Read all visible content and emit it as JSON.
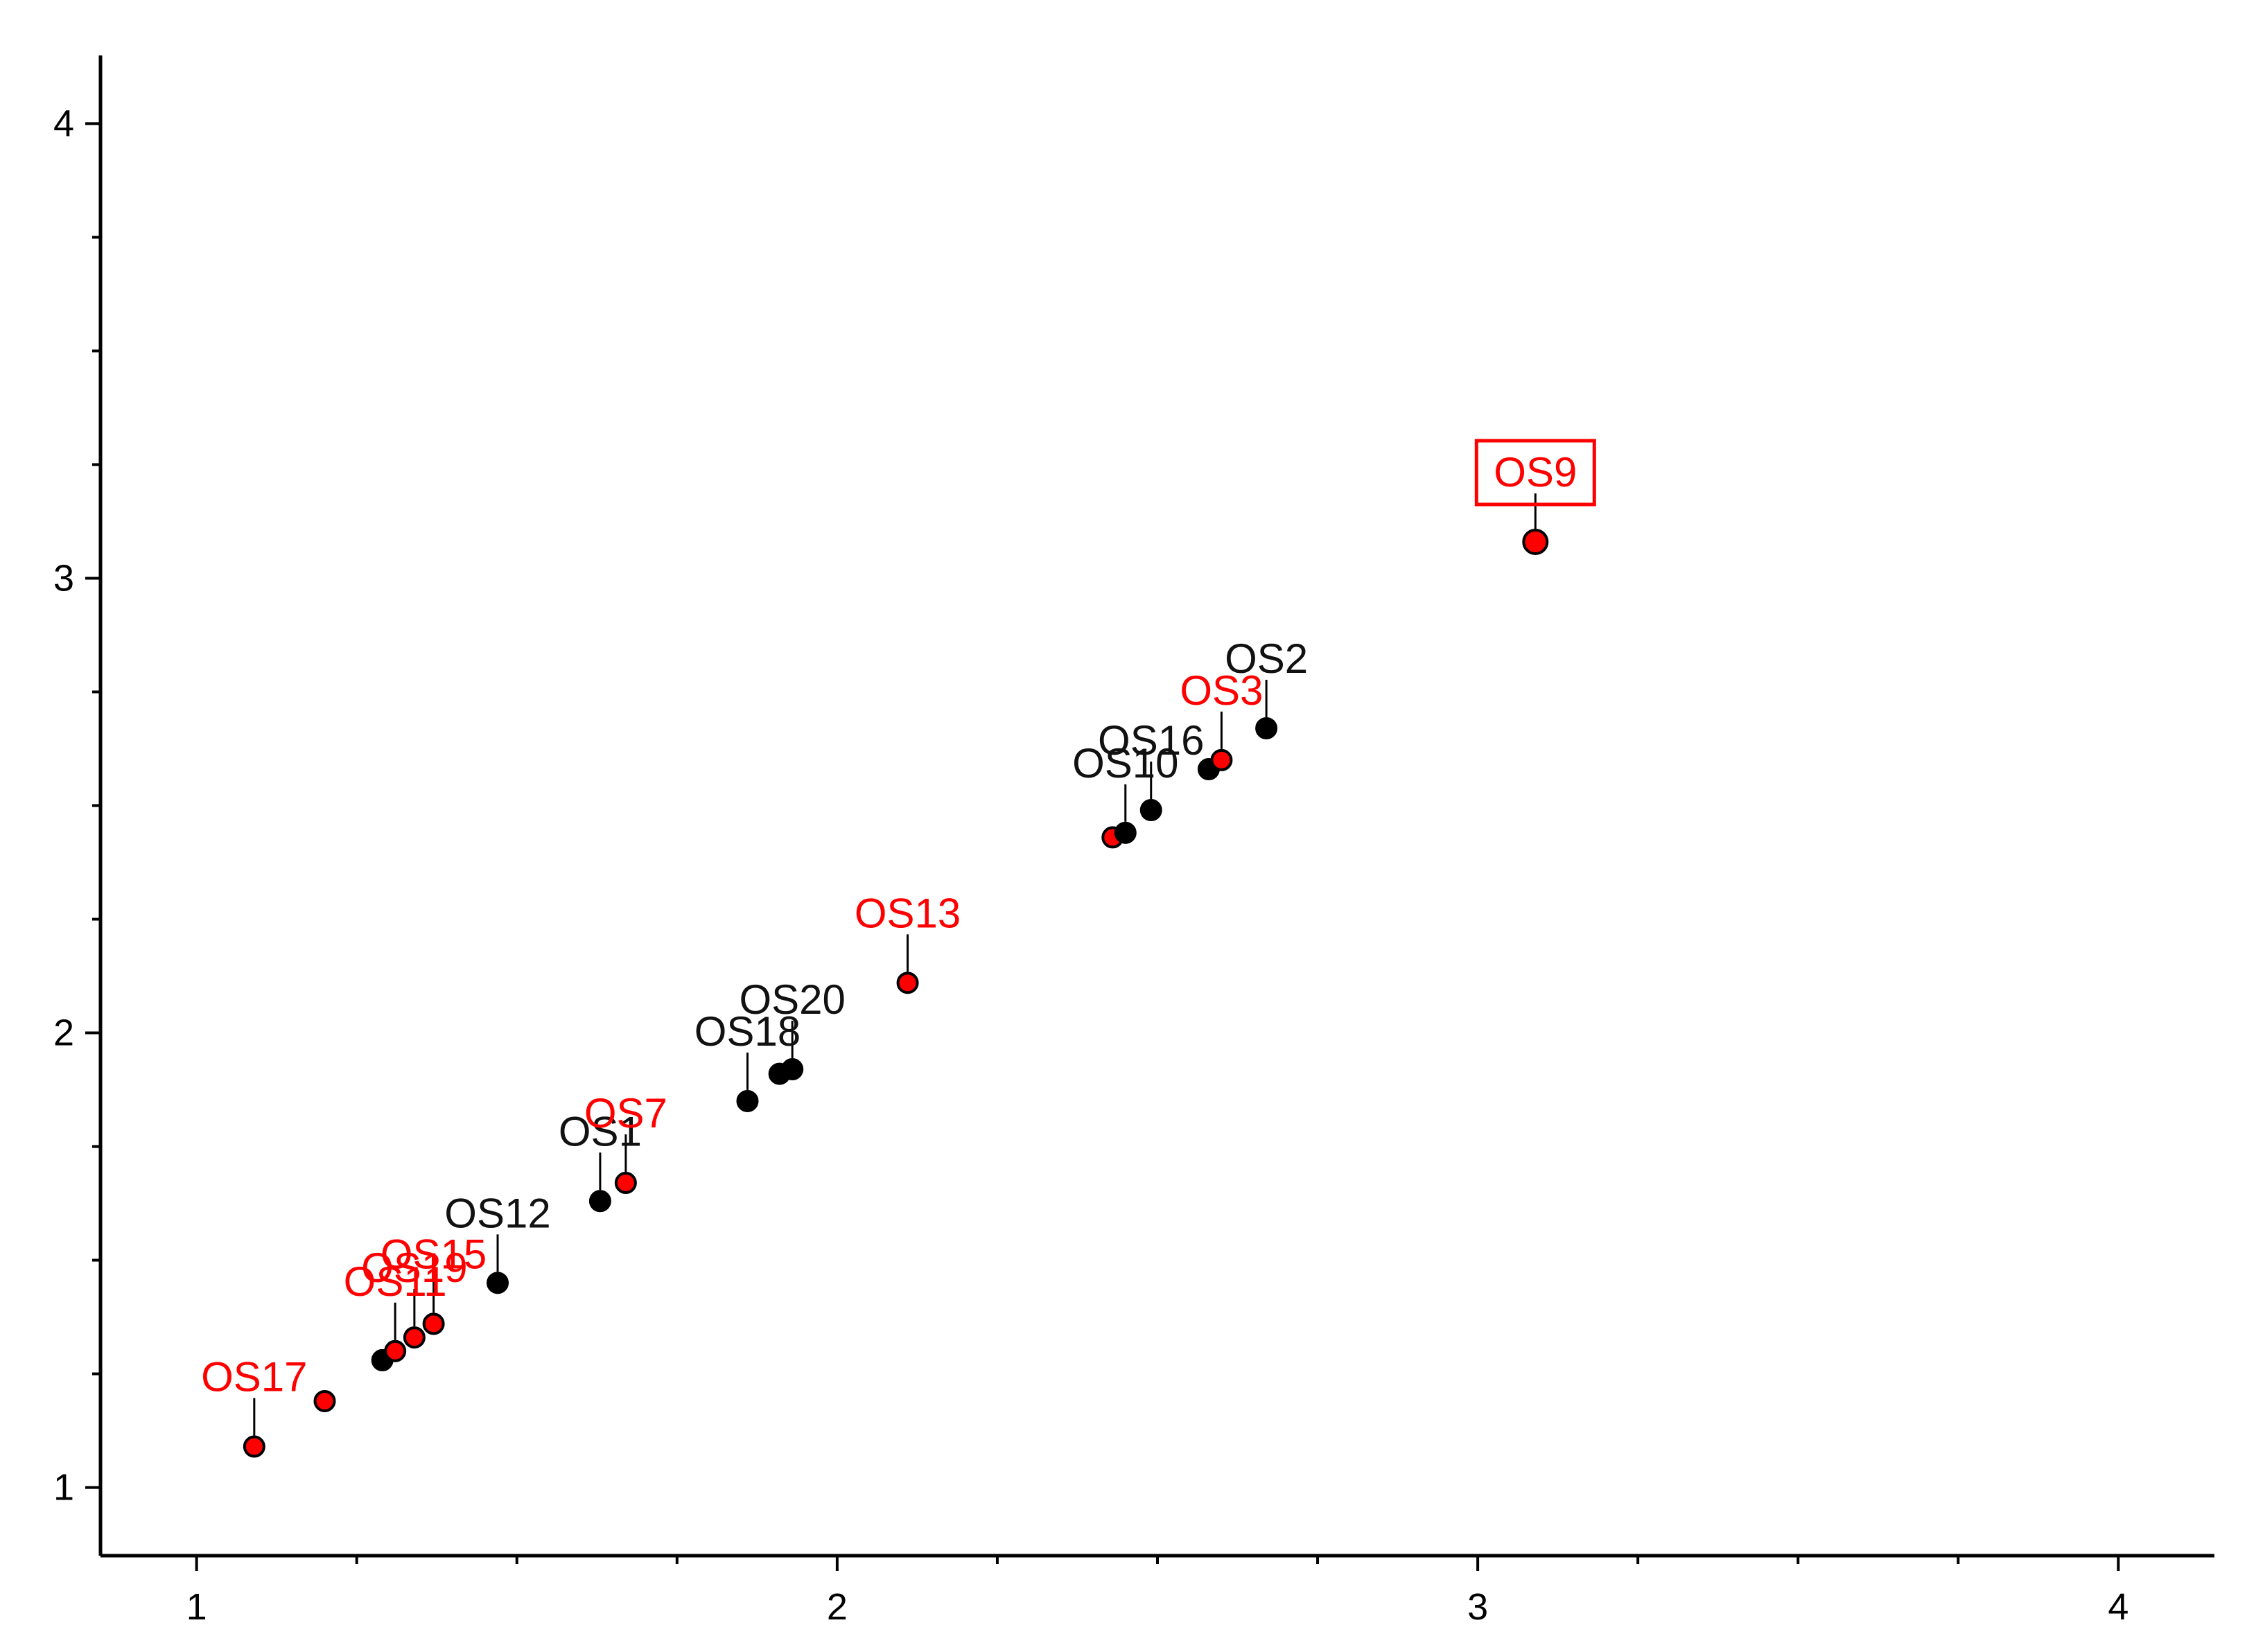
{
  "chart_data": {
    "type": "scatter",
    "title": "",
    "xlabel": "",
    "ylabel": "",
    "xlim": [
      0.85,
      4.15
    ],
    "ylim": [
      0.85,
      4.15
    ],
    "x_ticks": [
      1,
      2,
      3,
      4
    ],
    "y_ticks": [
      1,
      2,
      3,
      4
    ],
    "x_tick_labels": [
      "1",
      "2",
      "3",
      "4"
    ],
    "y_tick_labels": [
      "1",
      "2",
      "3",
      "4"
    ],
    "grid": false,
    "legend": "none",
    "colors": {
      "red": "#ff0000",
      "black": "#000000",
      "axis": "#000000"
    },
    "points": [
      {
        "label": "OS17",
        "x": 1.09,
        "y": 1.09,
        "color": "red"
      },
      {
        "label": "",
        "x": 1.2,
        "y": 1.19,
        "color": "red"
      },
      {
        "label": "",
        "x": 1.29,
        "y": 1.28,
        "color": "black"
      },
      {
        "label": "OS11",
        "x": 1.31,
        "y": 1.3,
        "color": "red"
      },
      {
        "label": "OS19",
        "x": 1.34,
        "y": 1.33,
        "color": "red"
      },
      {
        "label": "OS15",
        "x": 1.37,
        "y": 1.36,
        "color": "red"
      },
      {
        "label": "OS12",
        "x": 1.47,
        "y": 1.45,
        "color": "black"
      },
      {
        "label": "OS1",
        "x": 1.63,
        "y": 1.63,
        "color": "black"
      },
      {
        "label": "OS7",
        "x": 1.67,
        "y": 1.67,
        "color": "red"
      },
      {
        "label": "OS18",
        "x": 1.86,
        "y": 1.85,
        "color": "black"
      },
      {
        "label": "",
        "x": 1.91,
        "y": 1.91,
        "color": "black"
      },
      {
        "label": "OS20",
        "x": 1.93,
        "y": 1.92,
        "color": "black"
      },
      {
        "label": "OS13",
        "x": 2.11,
        "y": 2.11,
        "color": "red"
      },
      {
        "label": "",
        "x": 2.43,
        "y": 2.43,
        "color": "red"
      },
      {
        "label": "OS10",
        "x": 2.45,
        "y": 2.44,
        "color": "black"
      },
      {
        "label": "OS16",
        "x": 2.49,
        "y": 2.49,
        "color": "black"
      },
      {
        "label": "",
        "x": 2.58,
        "y": 2.58,
        "color": "black"
      },
      {
        "label": "OS3",
        "x": 2.6,
        "y": 2.6,
        "color": "red"
      },
      {
        "label": "OS2",
        "x": 2.67,
        "y": 2.67,
        "color": "black"
      },
      {
        "label": "OS9",
        "x": 3.09,
        "y": 3.08,
        "color": "red",
        "boxed": true
      }
    ]
  }
}
